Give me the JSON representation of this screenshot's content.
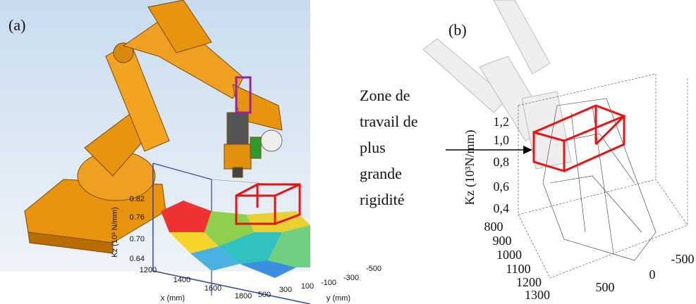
{
  "panel_a": {
    "label": "(a)",
    "z_axis_label": "Kz (10³ N/mm)",
    "z_ticks": [
      "0.82",
      "0.76",
      "0.70",
      "0.64"
    ],
    "x_axis_label": "x (mm)",
    "x_ticks": [
      "1200",
      "1400",
      "1600",
      "1800"
    ],
    "y_axis_label": "y (mm)",
    "y_ticks": [
      "500",
      "300",
      "100",
      "-100",
      "-300",
      "-500"
    ]
  },
  "annotation": {
    "lines": [
      "Zone de",
      "travail de",
      "plus",
      "grande",
      "rigidité"
    ]
  },
  "panel_b": {
    "label": "(b)",
    "z_axis_label": "Kz (10³N/mm)",
    "z_ticks": [
      "1,2",
      "1,0",
      "0,8",
      "0,6",
      "0,4"
    ],
    "x_ticks": [
      "800",
      "900",
      "1000",
      "1100",
      "1200",
      "1300"
    ],
    "y_ticks": [
      "500",
      "0",
      "-500"
    ]
  }
}
